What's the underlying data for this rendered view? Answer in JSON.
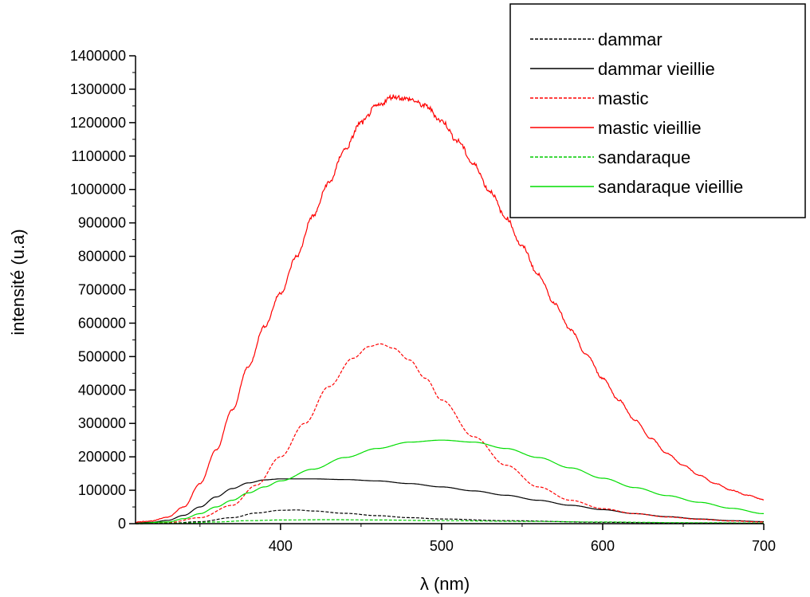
{
  "chart_data": {
    "type": "line",
    "title": "",
    "xlabel": "λ (nm)",
    "ylabel": "intensité (u.a)",
    "xlim": [
      310,
      700
    ],
    "ylim": [
      0,
      1400000
    ],
    "x_ticks": [
      400,
      500,
      600,
      700
    ],
    "y_ticks": [
      0,
      100000,
      200000,
      300000,
      400000,
      500000,
      600000,
      700000,
      800000,
      900000,
      1000000,
      1100000,
      1200000,
      1300000,
      1400000
    ],
    "grid": false,
    "legend_position": "top-right",
    "series": [
      {
        "name": "dammar",
        "color": "#000000",
        "style": "dashed",
        "points": [
          [
            310,
            0
          ],
          [
            330,
            1000
          ],
          [
            350,
            6000
          ],
          [
            370,
            18000
          ],
          [
            385,
            32000
          ],
          [
            400,
            40000
          ],
          [
            410,
            41000
          ],
          [
            420,
            38000
          ],
          [
            440,
            31000
          ],
          [
            460,
            24000
          ],
          [
            480,
            18000
          ],
          [
            500,
            14000
          ],
          [
            540,
            9000
          ],
          [
            600,
            4000
          ],
          [
            650,
            2000
          ],
          [
            700,
            1000
          ]
        ]
      },
      {
        "name": "dammar vieillie",
        "color": "#000000",
        "style": "solid",
        "points": [
          [
            310,
            2000
          ],
          [
            320,
            4000
          ],
          [
            330,
            10000
          ],
          [
            340,
            25000
          ],
          [
            350,
            50000
          ],
          [
            360,
            80000
          ],
          [
            370,
            105000
          ],
          [
            380,
            122000
          ],
          [
            390,
            131000
          ],
          [
            400,
            134000
          ],
          [
            420,
            134000
          ],
          [
            440,
            132000
          ],
          [
            460,
            128000
          ],
          [
            480,
            120000
          ],
          [
            500,
            110000
          ],
          [
            520,
            98000
          ],
          [
            540,
            85000
          ],
          [
            560,
            70000
          ],
          [
            580,
            55000
          ],
          [
            600,
            42000
          ],
          [
            620,
            30000
          ],
          [
            640,
            21000
          ],
          [
            660,
            14000
          ],
          [
            680,
            9000
          ],
          [
            700,
            6000
          ]
        ]
      },
      {
        "name": "mastic",
        "color": "#ff0000",
        "style": "dashed",
        "points": [
          [
            310,
            0
          ],
          [
            330,
            3000
          ],
          [
            350,
            18000
          ],
          [
            370,
            55000
          ],
          [
            385,
            115000
          ],
          [
            400,
            200000
          ],
          [
            415,
            300000
          ],
          [
            430,
            410000
          ],
          [
            445,
            495000
          ],
          [
            455,
            530000
          ],
          [
            462,
            538000
          ],
          [
            470,
            525000
          ],
          [
            480,
            490000
          ],
          [
            490,
            435000
          ],
          [
            500,
            370000
          ],
          [
            520,
            260000
          ],
          [
            540,
            175000
          ],
          [
            560,
            110000
          ],
          [
            580,
            70000
          ],
          [
            600,
            45000
          ],
          [
            620,
            30000
          ],
          [
            640,
            20000
          ],
          [
            660,
            13000
          ],
          [
            680,
            8000
          ],
          [
            700,
            5000
          ]
        ]
      },
      {
        "name": "mastic vieillie",
        "color": "#ff0000",
        "style": "solid",
        "points": [
          [
            310,
            5000
          ],
          [
            320,
            8000
          ],
          [
            330,
            20000
          ],
          [
            340,
            50000
          ],
          [
            350,
            120000
          ],
          [
            360,
            220000
          ],
          [
            370,
            340000
          ],
          [
            380,
            470000
          ],
          [
            390,
            590000
          ],
          [
            400,
            690000
          ],
          [
            410,
            800000
          ],
          [
            420,
            920000
          ],
          [
            430,
            1020000
          ],
          [
            440,
            1120000
          ],
          [
            450,
            1200000
          ],
          [
            460,
            1250000
          ],
          [
            470,
            1278000
          ],
          [
            480,
            1270000
          ],
          [
            490,
            1250000
          ],
          [
            500,
            1205000
          ],
          [
            510,
            1145000
          ],
          [
            520,
            1075000
          ],
          [
            530,
            995000
          ],
          [
            540,
            915000
          ],
          [
            550,
            830000
          ],
          [
            560,
            745000
          ],
          [
            570,
            660000
          ],
          [
            580,
            580000
          ],
          [
            590,
            505000
          ],
          [
            600,
            435000
          ],
          [
            610,
            370000
          ],
          [
            620,
            310000
          ],
          [
            630,
            255000
          ],
          [
            640,
            210000
          ],
          [
            650,
            175000
          ],
          [
            660,
            145000
          ],
          [
            670,
            120000
          ],
          [
            680,
            100000
          ],
          [
            690,
            85000
          ],
          [
            700,
            72000
          ]
        ]
      },
      {
        "name": "sandaraque",
        "color": "#00cc00",
        "style": "dashed",
        "points": [
          [
            310,
            0
          ],
          [
            340,
            2000
          ],
          [
            360,
            5000
          ],
          [
            380,
            9000
          ],
          [
            400,
            11000
          ],
          [
            430,
            12000
          ],
          [
            460,
            11000
          ],
          [
            500,
            9000
          ],
          [
            550,
            7000
          ],
          [
            600,
            5000
          ],
          [
            650,
            3000
          ],
          [
            700,
            2000
          ]
        ]
      },
      {
        "name": "sandaraque vieillie",
        "color": "#00dd00",
        "style": "solid",
        "points": [
          [
            310,
            1000
          ],
          [
            330,
            5000
          ],
          [
            340,
            15000
          ],
          [
            350,
            30000
          ],
          [
            360,
            50000
          ],
          [
            370,
            70000
          ],
          [
            380,
            92000
          ],
          [
            390,
            110000
          ],
          [
            400,
            128000
          ],
          [
            420,
            163000
          ],
          [
            440,
            198000
          ],
          [
            460,
            225000
          ],
          [
            480,
            244000
          ],
          [
            500,
            250000
          ],
          [
            520,
            244000
          ],
          [
            540,
            225000
          ],
          [
            560,
            198000
          ],
          [
            580,
            167000
          ],
          [
            600,
            136000
          ],
          [
            620,
            108000
          ],
          [
            640,
            84000
          ],
          [
            660,
            64000
          ],
          [
            680,
            46000
          ],
          [
            700,
            30000
          ]
        ]
      }
    ]
  }
}
